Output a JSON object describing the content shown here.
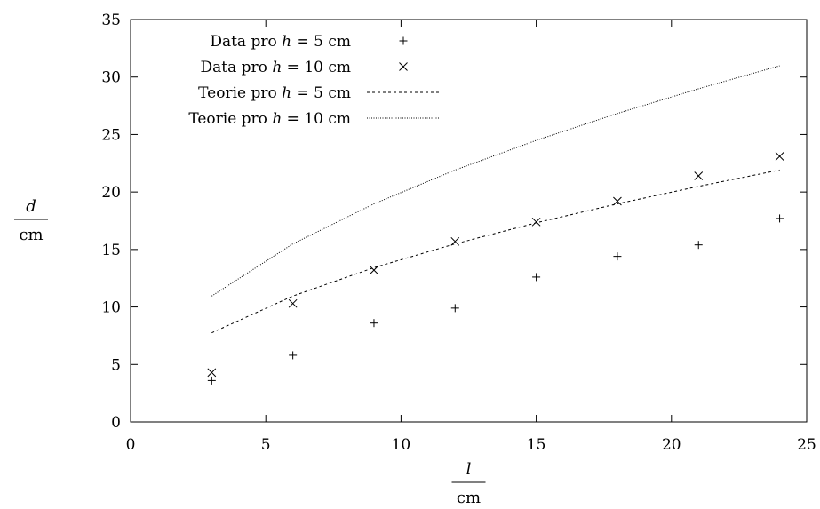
{
  "chart_data": {
    "type": "scatter",
    "xlim": [
      0,
      25
    ],
    "ylim": [
      0,
      35
    ],
    "xticks": [
      0,
      5,
      10,
      15,
      20,
      25
    ],
    "yticks": [
      0,
      5,
      10,
      15,
      20,
      25,
      30,
      35
    ],
    "grid": false,
    "legend_position": "top-left",
    "xlabel": {
      "var": "l",
      "unit": "cm"
    },
    "ylabel": {
      "var": "d",
      "unit": "cm"
    },
    "series": [
      {
        "name": "Data pro h = 5 cm",
        "label_text": "Data pro",
        "label_var": "h",
        "label_eq": " = 5 cm",
        "kind": "points",
        "marker": "plus",
        "x": [
          3,
          6,
          9,
          12,
          15,
          18,
          21,
          24
        ],
        "y": [
          3.6,
          5.8,
          8.6,
          9.9,
          12.6,
          14.4,
          15.4,
          17.7
        ]
      },
      {
        "name": "Data pro h = 10 cm",
        "label_text": "Data pro",
        "label_var": "h",
        "label_eq": " = 10 cm",
        "kind": "points",
        "marker": "cross",
        "x": [
          3,
          6,
          9,
          12,
          15,
          18,
          21,
          24
        ],
        "y": [
          4.3,
          10.3,
          13.2,
          15.7,
          17.4,
          19.2,
          21.4,
          23.1
        ]
      },
      {
        "name": "Teorie pro h = 5 cm",
        "label_text": "Teorie pro",
        "label_var": "h",
        "label_eq": " = 5 cm",
        "kind": "line",
        "dash": "dashed",
        "x": [
          3,
          6,
          9,
          12,
          15,
          18,
          21,
          24
        ],
        "y": [
          7.75,
          10.95,
          13.42,
          15.49,
          17.32,
          18.97,
          20.49,
          21.91
        ]
      },
      {
        "name": "Teorie pro h = 10 cm",
        "label_text": "Teorie pro",
        "label_var": "h",
        "label_eq": " = 10 cm",
        "kind": "line",
        "dash": "dotted",
        "x": [
          3,
          6,
          9,
          12,
          15,
          18,
          21,
          24
        ],
        "y": [
          10.95,
          15.49,
          18.97,
          21.91,
          24.49,
          26.83,
          28.98,
          30.98
        ]
      }
    ]
  }
}
